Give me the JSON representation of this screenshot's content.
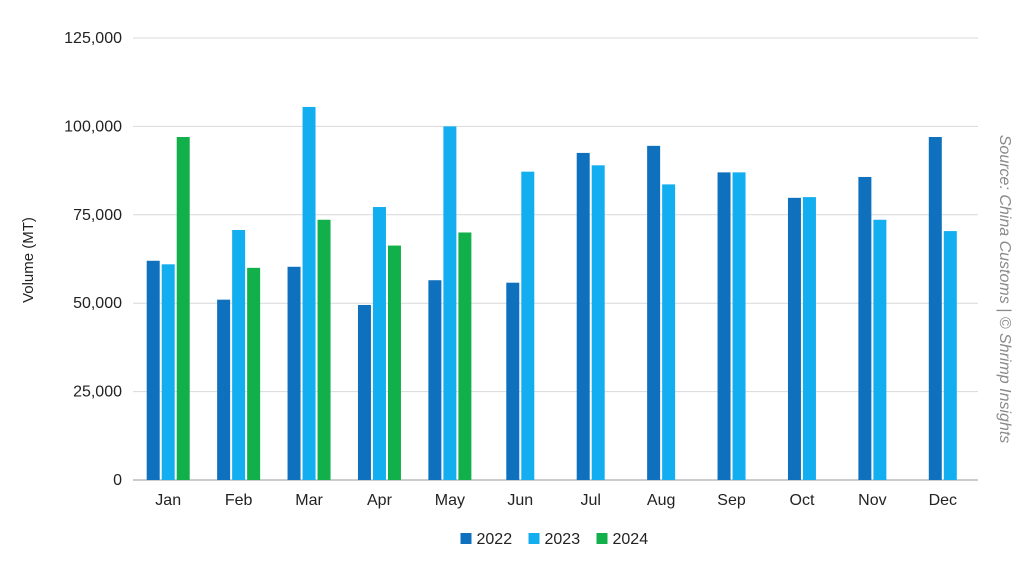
{
  "chart_data": {
    "type": "bar",
    "title": "",
    "ylabel": "Volume (MT)",
    "xlabel": "",
    "ylim": [
      0,
      125000
    ],
    "yticks": [
      "0",
      "25,000",
      "50,000",
      "75,000",
      "100,000",
      "125,000"
    ],
    "ytick_values": [
      0,
      25000,
      50000,
      75000,
      100000,
      125000
    ],
    "grid": true,
    "legend_position": "bottom",
    "source_note": "Source: China Customs | © Shrimp Insights",
    "categories": [
      "Jan",
      "Feb",
      "Mar",
      "Apr",
      "May",
      "Jun",
      "Jul",
      "Aug",
      "Sep",
      "Oct",
      "Nov",
      "Dec"
    ],
    "series": [
      {
        "name": "2022",
        "color": "#0f71bd",
        "values": [
          62000,
          51000,
          60300,
          49500,
          56500,
          55800,
          92500,
          94500,
          87000,
          79800,
          85700,
          97000
        ]
      },
      {
        "name": "2023",
        "color": "#13aef0",
        "values": [
          61000,
          70700,
          105500,
          77200,
          100000,
          87200,
          89000,
          83600,
          87000,
          80000,
          73600,
          70400
        ]
      },
      {
        "name": "2024",
        "color": "#12b04b",
        "values": [
          97000,
          60000,
          73600,
          66300,
          70000,
          null,
          null,
          null,
          null,
          null,
          null,
          null
        ]
      }
    ]
  }
}
